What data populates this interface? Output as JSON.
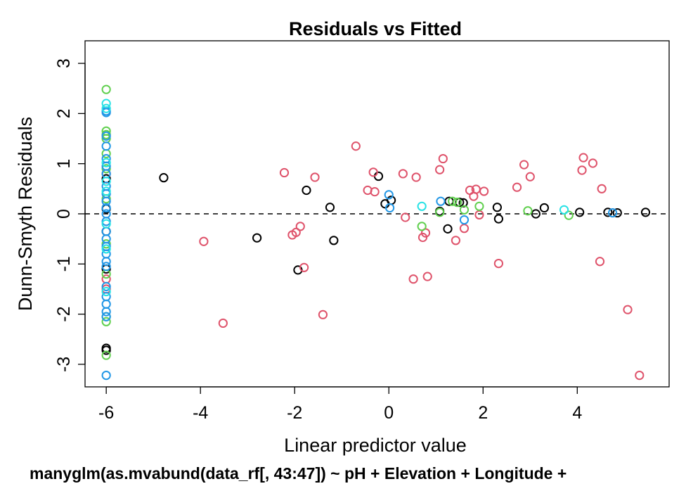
{
  "chart_data": {
    "type": "scatter",
    "title": "Residuals vs Fitted",
    "xlabel": "Linear predictor value",
    "ylabel": "Dunn-Smyth Residuals",
    "subtitle": "manyglm(as.mvabund(data_rf[, 43:47]) ~ pH + Elevation + Longitude +",
    "xlim": [
      -6.45,
      5.95
    ],
    "ylim": [
      -3.45,
      3.45
    ],
    "x_ticks": [
      -6,
      -4,
      -2,
      0,
      2,
      4
    ],
    "x_tick_labels": [
      "-6",
      "-4",
      "-2",
      "0",
      "2",
      "4"
    ],
    "y_ticks": [
      -3,
      -2,
      -1,
      0,
      1,
      2,
      3
    ],
    "y_tick_labels": [
      "-3",
      "-2",
      "-1",
      "0",
      "1",
      "2",
      "3"
    ],
    "reference_line": {
      "y": 0,
      "style": "dashed",
      "color": "#000000"
    },
    "grid": false,
    "legend": "none",
    "series": [
      {
        "color": "#000000",
        "x": [
          -6,
          -6,
          -6,
          -6,
          -6,
          -6,
          -4.78,
          -2.8,
          -1.75,
          -1.93,
          -1.25,
          -1.17,
          -0.22,
          -0.08,
          0.05,
          1.08,
          1.28,
          1.25,
          1.5,
          1.58,
          2.3,
          2.33,
          3.12,
          3.3,
          4.05,
          4.65,
          4.85,
          5.45
        ],
        "y": [
          0.7,
          -0.35,
          -1.1,
          -2.72,
          -2.68,
          0.1,
          0.72,
          -0.48,
          0.47,
          -1.12,
          0.13,
          -0.53,
          0.75,
          0.2,
          0.27,
          0.05,
          0.25,
          -0.3,
          0.23,
          0.22,
          0.13,
          -0.1,
          0.0,
          0.12,
          0.03,
          0.03,
          0.02,
          0.03
        ]
      },
      {
        "color": "#DF536B",
        "x": [
          -6,
          -6,
          -6,
          -3.93,
          -3.52,
          -2.22,
          -2.05,
          -1.97,
          -1.88,
          -1.8,
          -1.57,
          -1.4,
          -0.7,
          -0.45,
          -0.33,
          -0.3,
          0.3,
          0.35,
          0.52,
          0.58,
          0.72,
          0.78,
          0.82,
          1.08,
          1.15,
          1.42,
          1.6,
          1.72,
          1.8,
          1.85,
          1.92,
          2.02,
          2.33,
          2.72,
          2.87,
          3.0,
          4.1,
          4.13,
          4.33,
          4.48,
          4.52,
          5.07,
          5.32
        ],
        "y": [
          -1.3,
          -1.5,
          0.8,
          -0.55,
          -2.18,
          0.82,
          -0.42,
          -0.37,
          -0.25,
          -1.07,
          0.73,
          -2.01,
          1.35,
          0.47,
          0.83,
          0.44,
          0.8,
          -0.07,
          -1.3,
          0.73,
          -0.47,
          -0.38,
          -1.25,
          0.88,
          1.1,
          -0.53,
          -0.29,
          0.47,
          0.35,
          0.49,
          -0.02,
          0.45,
          -0.99,
          0.53,
          0.98,
          0.74,
          0.87,
          1.12,
          1.01,
          -0.95,
          0.5,
          -1.91,
          -3.22
        ]
      },
      {
        "color": "#61D04F",
        "x": [
          -6,
          -6,
          -6,
          -6,
          -6,
          -6,
          -6,
          -6,
          -6,
          -6,
          -6,
          -6,
          0.7,
          1.08,
          1.35,
          1.45,
          1.6,
          1.92,
          2.95,
          3.82
        ],
        "y": [
          2.48,
          1.65,
          1.58,
          1.5,
          1.2,
          0.9,
          0.3,
          -0.6,
          -1.2,
          -2.15,
          -2.05,
          -2.82,
          -0.25,
          0.03,
          0.25,
          0.23,
          0.08,
          0.15,
          0.06,
          -0.03
        ]
      },
      {
        "color": "#2297E6",
        "x": [
          -6,
          -6,
          -6,
          -6,
          -6,
          -6,
          -6,
          -6,
          -6,
          -6,
          -6,
          -6,
          -6,
          -6,
          -6,
          -6,
          -6,
          -6,
          -6,
          -6,
          -6,
          -6,
          -6,
          -6,
          -6,
          0.0,
          0.02,
          1.1,
          1.6,
          4.75
        ],
        "y": [
          2.05,
          2.02,
          1.55,
          1.35,
          1.1,
          0.95,
          0.8,
          0.55,
          0.4,
          0.25,
          0.12,
          0.0,
          -0.15,
          -0.35,
          -0.5,
          -0.65,
          -0.8,
          -0.95,
          -1.05,
          -1.45,
          -1.65,
          -1.8,
          -1.95,
          -2.05,
          -3.22,
          0.38,
          0.12,
          0.25,
          -0.12,
          0.02
        ]
      },
      {
        "color": "#28E2E5",
        "x": [
          -6,
          -6,
          -6,
          -6,
          -6,
          -6,
          -6,
          -6,
          0.7,
          3.72
        ],
        "y": [
          2.2,
          2.1,
          1.02,
          0.65,
          0.45,
          -0.2,
          -0.7,
          -1.55,
          0.15,
          0.08
        ]
      }
    ]
  }
}
